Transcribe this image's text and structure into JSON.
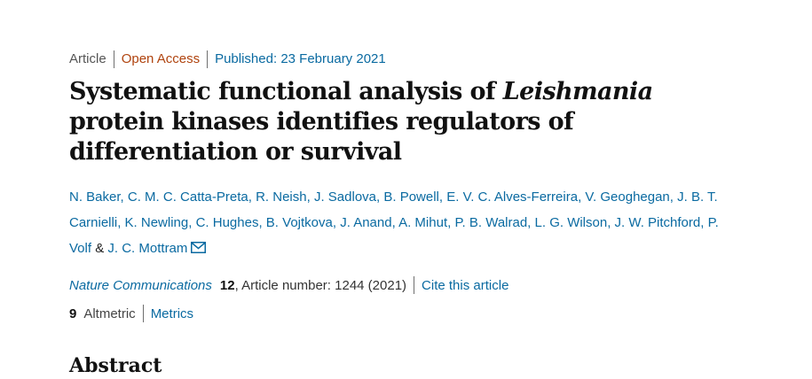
{
  "meta": {
    "article_type": "Article",
    "access": "Open Access",
    "published_label": "Published:",
    "published_date": "23 February 2021"
  },
  "title": {
    "part1": "Systematic functional analysis of ",
    "italic": "Leishmania",
    "part2": " protein kinases identifies regulators of differentiation or survival"
  },
  "authors": {
    "list": [
      "N. Baker",
      "C. M. C. Catta-Preta",
      "R. Neish",
      "J. Sadlova",
      "B. Powell",
      "E. V. C. Alves-Ferreira",
      "V. Geoghegan",
      "J. B. T. Carnielli",
      "K. Newling",
      "C. Hughes",
      "B. Vojtkova",
      "J. Anand",
      "A. Mihut",
      "P. B. Walrad",
      "L. G. Wilson",
      "J. W. Pitchford",
      "P. Volf"
    ],
    "last": "J. C. Mottram",
    "amp": "&",
    "mail_icon": "envelope-icon"
  },
  "citation": {
    "journal": "Nature Communications",
    "volume": "12",
    "rest": ", Article number: 1244 (2021)",
    "cite_label": "Cite this article"
  },
  "metrics": {
    "altmetric_count": "9",
    "altmetric_label": "Altmetric",
    "metrics_label": "Metrics"
  },
  "abstract_heading": "Abstract"
}
